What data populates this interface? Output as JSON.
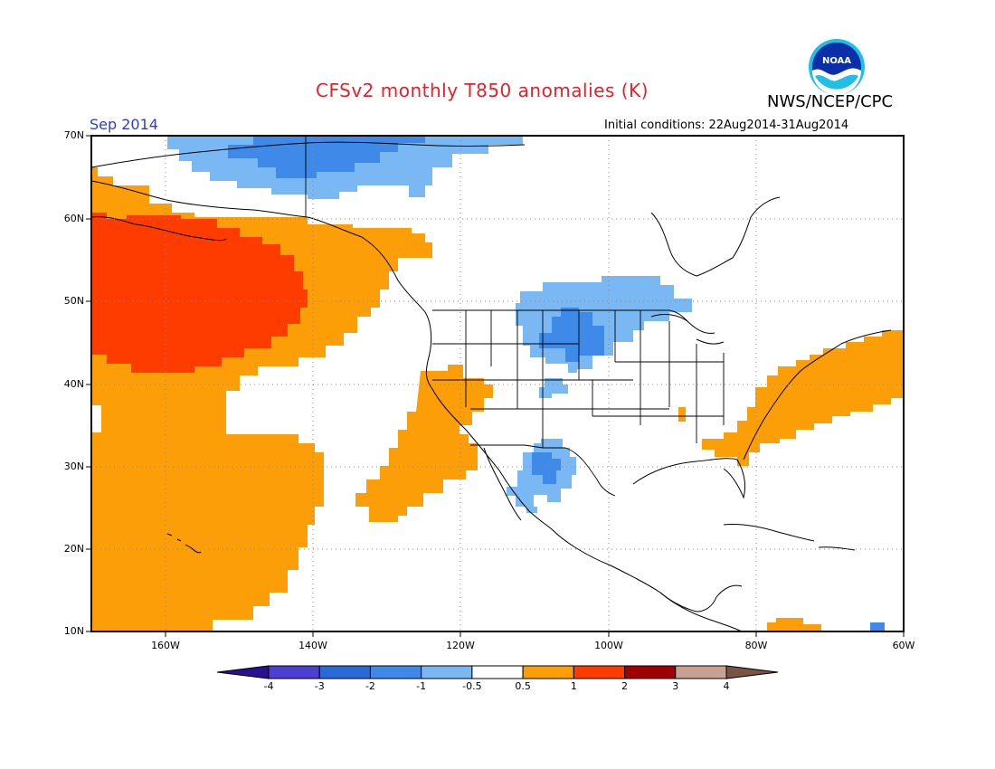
{
  "header": {
    "title": "CFSv2 monthly T850 anomalies (K)",
    "agency": "NWS/NCEP/CPC",
    "period": "Sep 2014",
    "initial_conditions": "Initial conditions: 22Aug2014-31Aug2014",
    "logo_text": "NOAA"
  },
  "map": {
    "projection": "lat-lon",
    "lon_range": [
      -171,
      -60
    ],
    "lat_range": [
      10,
      70
    ],
    "lat_labels": [
      "70N",
      "60N",
      "50N",
      "40N",
      "30N",
      "20N",
      "10N"
    ],
    "lon_labels": [
      "160W",
      "140W",
      "120W",
      "100W",
      "80W",
      "60W"
    ],
    "gridlines": "dotted",
    "anomaly_regions": [
      {
        "sign": "warm",
        "level": "0.5 to 1",
        "area": "Northeast Pacific and Gulf of Alaska"
      },
      {
        "sign": "warm",
        "level": "1 to 2",
        "area": "Gulf of Alaska core"
      },
      {
        "sign": "warm",
        "level": "0.5 to 1",
        "area": "Central subtropical Pacific near Hawaii"
      },
      {
        "sign": "warm",
        "level": "0.5 to 1",
        "area": "Off Baja California and Pacific coast"
      },
      {
        "sign": "warm",
        "level": "0.5 to 1",
        "area": "US East Coast and western Atlantic"
      },
      {
        "sign": "warm",
        "level": "0.5 to 1",
        "area": "Caribbean"
      },
      {
        "sign": "cold",
        "level": "-1 to -0.5",
        "area": "Arctic coast of Alaska and Canada"
      },
      {
        "sign": "cold",
        "level": "-2 to -1",
        "area": "Beaufort Sea core"
      },
      {
        "sign": "cold",
        "level": "-1 to -0.5",
        "area": "Northern Plains"
      },
      {
        "sign": "cold",
        "level": "-2 to -1",
        "area": "Dakotas core"
      },
      {
        "sign": "cold",
        "level": "-1 to -0.5",
        "area": "Northwest Mexico"
      }
    ]
  },
  "colorbar": {
    "labels": [
      "-4",
      "-3",
      "-2",
      "-1",
      "-0.5",
      "0.5",
      "1",
      "2",
      "3",
      "4"
    ],
    "colors": [
      "#2a0f8f",
      "#4e3fd3",
      "#2a6ad6",
      "#3f8ae8",
      "#7ab8f4",
      "#ffffff",
      "#fb9e07",
      "#ff3c00",
      "#a10000",
      "#c8a291",
      "#7a5443"
    ]
  }
}
